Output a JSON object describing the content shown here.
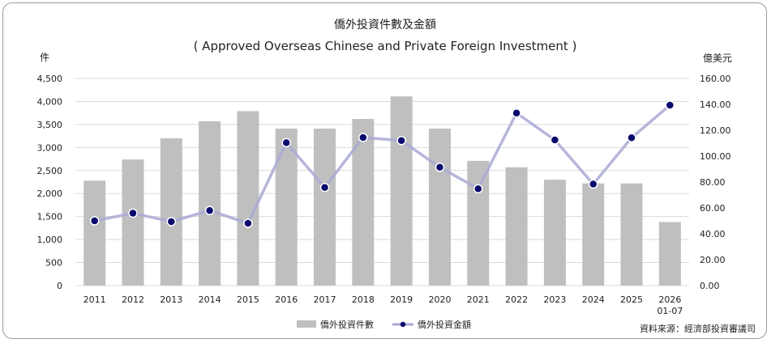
{
  "chart_data": {
    "type": "bar+line",
    "title": "僑外投資件數及金額",
    "subtitle": "( Approved Overseas Chinese and Private Foreign Investment )",
    "left_axis_label": "件",
    "right_axis_label": "億美元",
    "categories": [
      "2011",
      "2012",
      "2013",
      "2014",
      "2015",
      "2016",
      "2017",
      "2018",
      "2019",
      "2020",
      "2021",
      "2022",
      "2023",
      "2024",
      "2025",
      "2026\n01-07"
    ],
    "series": [
      {
        "name": "僑外投資件數",
        "kind": "bar",
        "axis": "left",
        "color": "#bfbfbf",
        "values": [
          2280,
          2740,
          3200,
          3570,
          3790,
          3410,
          3410,
          3620,
          4110,
          3410,
          2710,
          2570,
          2300,
          2220,
          2220,
          1380
        ]
      },
      {
        "name": "僑外投資金額",
        "kind": "line",
        "axis": "right",
        "color": "#0a0a6e",
        "line_color": "#a9a9d6",
        "values": [
          50.0,
          55.9,
          49.4,
          58.0,
          48.1,
          110.4,
          75.8,
          114.4,
          112.0,
          91.4,
          74.8,
          133.3,
          112.5,
          78.4,
          114.2,
          139.4
        ]
      }
    ],
    "left_ticks": [
      "0",
      "500",
      "1,000",
      "1,500",
      "2,000",
      "2,500",
      "3,000",
      "3,500",
      "4,000",
      "4,500"
    ],
    "right_ticks": [
      "0.00",
      "20.00",
      "40.00",
      "60.00",
      "80.00",
      "100.00",
      "120.00",
      "140.00",
      "160.00"
    ],
    "left_ylim": [
      0,
      4500
    ],
    "right_ylim": [
      0,
      160
    ],
    "grid": true,
    "legend_position": "bottom",
    "source": "資料來源：經濟部投資審議司"
  }
}
